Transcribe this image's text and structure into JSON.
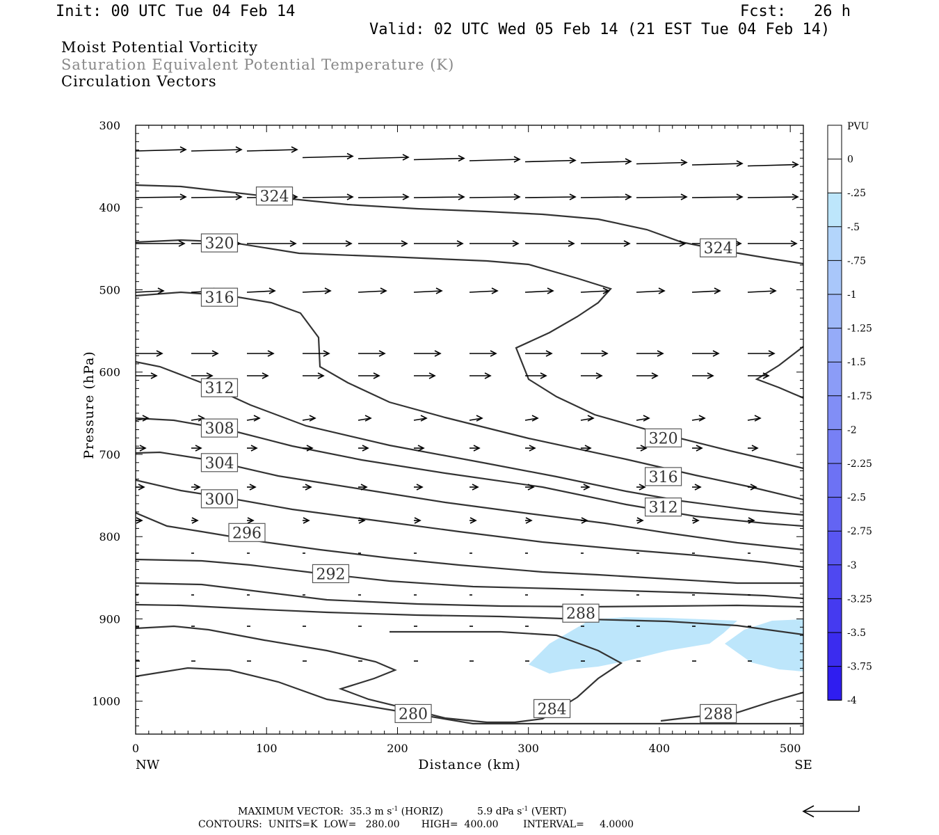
{
  "header": {
    "init": "Init: 00 UTC Tue 04 Feb 14",
    "fcst": "Fcst:   26 h",
    "valid": "Valid: 02 UTC Wed 05 Feb 14 (21 EST Tue 04 Feb 14)"
  },
  "subtitles": {
    "line1": "Moist Potential Vorticity",
    "line2": "Saturation Equivalent Potential Temperature (K)",
    "line3": "Circulation Vectors"
  },
  "colors": {
    "contour": "#333333",
    "pv_fill": "#bde6fb",
    "vector": "#000000",
    "subtitle2": "#888888"
  },
  "chart_data": {
    "type": "cross-section",
    "xlabel": "Distance (km)",
    "ylabel": "Pressure (hPa)",
    "xlim": [
      0,
      510
    ],
    "ylim": [
      1040,
      300
    ],
    "x_ticks": [
      "0",
      "100",
      "200",
      "300",
      "400",
      "500"
    ],
    "y_ticks": [
      "300",
      "400",
      "500",
      "600",
      "700",
      "800",
      "900",
      "1000"
    ],
    "endpoint_left": "NW",
    "endpoint_right": "SE",
    "contour_labels": [
      {
        "text": "324",
        "x": 106,
        "p": 386
      },
      {
        "text": "324",
        "x": 445,
        "p": 449
      },
      {
        "text": "320",
        "x": 64,
        "p": 443
      },
      {
        "text": "316",
        "x": 64,
        "p": 509
      },
      {
        "text": "312",
        "x": 64,
        "p": 619
      },
      {
        "text": "308",
        "x": 64,
        "p": 668
      },
      {
        "text": "304",
        "x": 64,
        "p": 710
      },
      {
        "text": "300",
        "x": 64,
        "p": 754
      },
      {
        "text": "296",
        "x": 85,
        "p": 795
      },
      {
        "text": "292",
        "x": 149,
        "p": 845
      },
      {
        "text": "288",
        "x": 340,
        "p": 893
      },
      {
        "text": "320",
        "x": 403,
        "p": 680
      },
      {
        "text": "316",
        "x": 403,
        "p": 727
      },
      {
        "text": "312",
        "x": 403,
        "p": 764
      },
      {
        "text": "280",
        "x": 212,
        "p": 1015
      },
      {
        "text": "284",
        "x": 318,
        "p": 1009
      },
      {
        "text": "288",
        "x": 445,
        "p": 1015
      }
    ],
    "colorbar": {
      "title": "PVU",
      "labels": [
        "0",
        "-.25",
        "-.5",
        "-.75",
        "-1",
        "-1.25",
        "-1.5",
        "-1.75",
        "-2",
        "-2.25",
        "-2.5",
        "-2.75",
        "-3",
        "-3.25",
        "-3.5",
        "-3.75",
        "-4"
      ],
      "colors": [
        "#ffffff",
        "#ffffff",
        "#bde6fb",
        "#b3d5fb",
        "#a9c7fa",
        "#9fb9f9",
        "#95abf8",
        "#8b9cf7",
        "#818ef6",
        "#7780f5",
        "#6d72f4",
        "#6364f3",
        "#5956f2",
        "#4f48f1",
        "#453af0",
        "#3b2cef",
        "#2f1df0"
      ]
    }
  },
  "footer": {
    "max_vector_label": "MAXIMUM VECTOR:",
    "max_vector_horiz": "35.3 m s",
    "horiz_unit": "(HORIZ)",
    "max_vector_vert": "5.9 dPa s",
    "vert_unit": "(VERT)",
    "exponent": "-1",
    "contours": "CONTOURS:  UNITS=K  LOW=   280.00       HIGH=  400.00        INTERVAL=     4.0000"
  }
}
